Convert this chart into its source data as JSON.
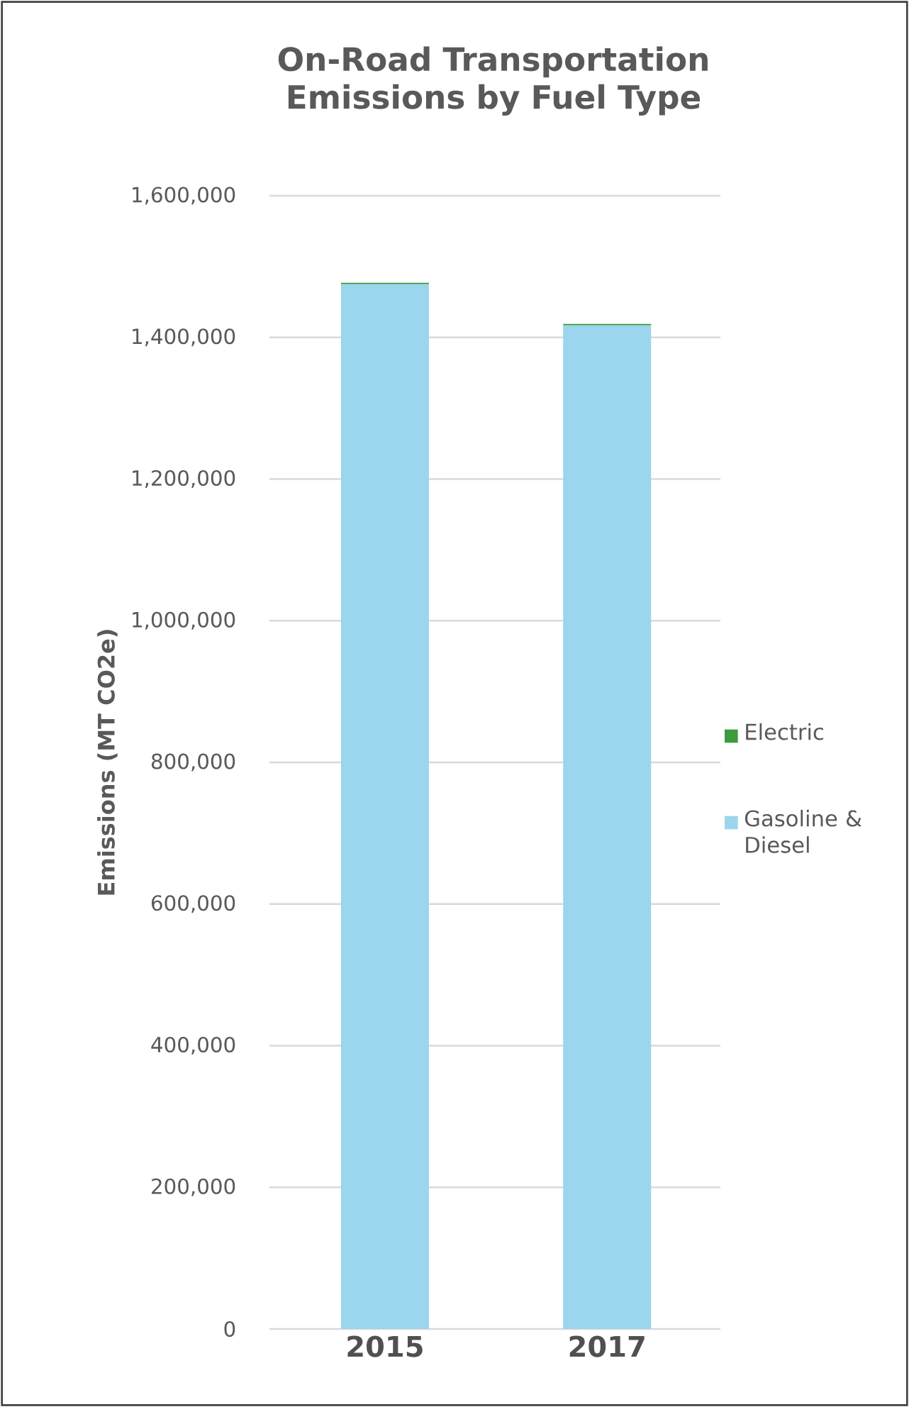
{
  "chart_data": {
    "type": "bar",
    "title": "On-Road Transportation Emissions by Fuel Type",
    "ylabel": "Emissions (MT CO2e)",
    "categories": [
      "2015",
      "2017"
    ],
    "stacked": true,
    "series": [
      {
        "name": "Gasoline & Diesel",
        "color": "#9bd5ee",
        "values": [
          1475000,
          1417000
        ]
      },
      {
        "name": "Electric",
        "color": "#3d9a3d",
        "values": [
          2000,
          2000
        ]
      }
    ],
    "ylim": [
      0,
      1600000
    ],
    "yticks": [
      {
        "value": 0,
        "label": "0"
      },
      {
        "value": 200000,
        "label": "200,000"
      },
      {
        "value": 400000,
        "label": "400,000"
      },
      {
        "value": 600000,
        "label": "600,000"
      },
      {
        "value": 800000,
        "label": "800,000"
      },
      {
        "value": 1000000,
        "label": "1,000,000"
      },
      {
        "value": 1200000,
        "label": "1,200,000"
      },
      {
        "value": 1400000,
        "label": "1,400,000"
      },
      {
        "value": 1600000,
        "label": "1,600,000"
      }
    ],
    "grid": "y",
    "legend": "right"
  }
}
